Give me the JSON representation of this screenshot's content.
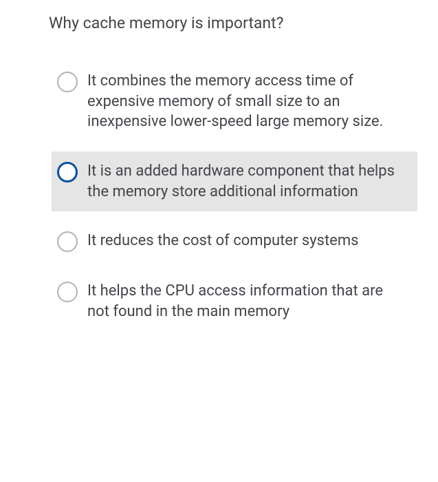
{
  "question": {
    "title": "Why cache memory is important?",
    "title_fontsize": 23,
    "title_color": "#42454a"
  },
  "options": [
    {
      "text": "It combines the memory access time of expensive memory of small size to an inexpensive lower-speed large memory size.",
      "selected": false
    },
    {
      "text": "It is an added hardware component that helps the memory store additional information",
      "selected": true
    },
    {
      "text": "It reduces the cost of computer systems",
      "selected": false
    },
    {
      "text": "It helps the CPU access information that are not found in the main memory",
      "selected": false
    }
  ],
  "colors": {
    "background": "#ffffff",
    "text": "#42454a",
    "radio_border": "#b0b2b5",
    "radio_selected_border": "#0a4f9f",
    "selected_bg": "#e5e5e5"
  },
  "typography": {
    "option_fontsize": 22,
    "font_family": "-apple-system, sans-serif"
  }
}
